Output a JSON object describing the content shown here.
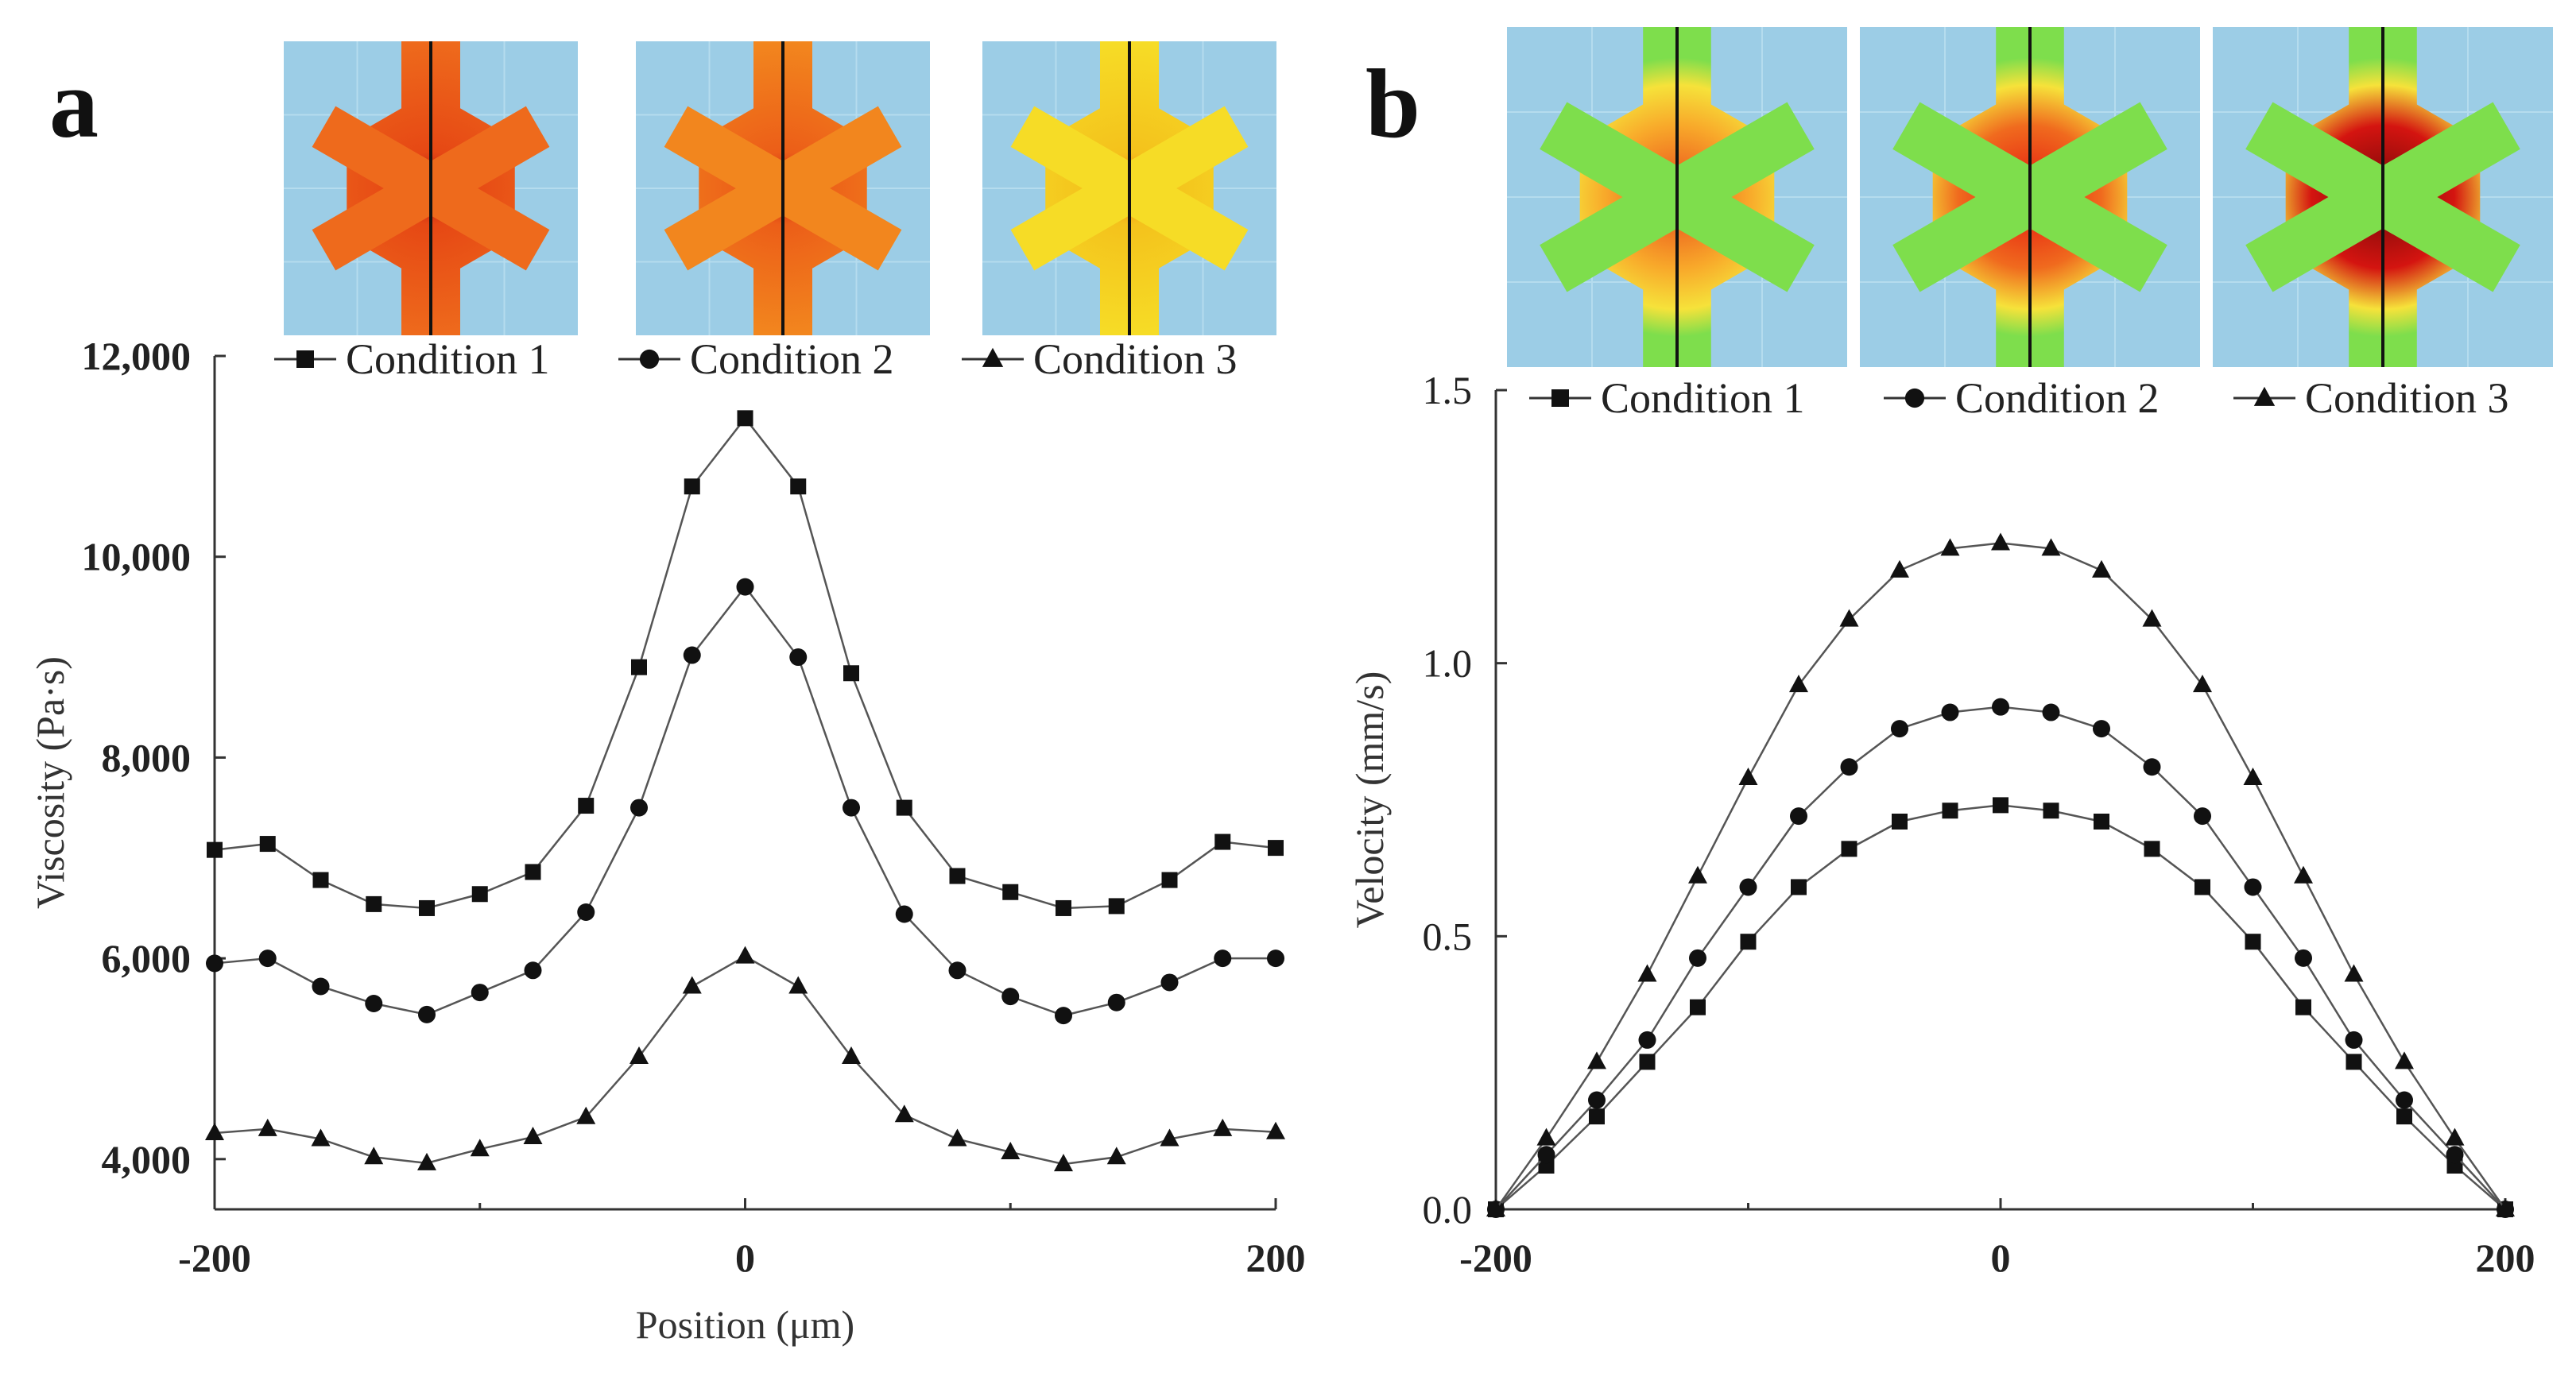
{
  "panels": [
    {
      "letter": "a",
      "thumbnails": [
        {
          "label": "Condition 1",
          "colormap": "viscosity",
          "center": "#b01010",
          "mid": "#e64814",
          "edge": "#ee6a1c",
          "bg": "#9ccde6"
        },
        {
          "label": "Condition 2",
          "colormap": "viscosity",
          "center": "#c81e10",
          "mid": "#ec5e18",
          "edge": "#f2861e",
          "bg": "#9ccde6"
        },
        {
          "label": "Condition 3",
          "colormap": "viscosity",
          "center": "#f07e16",
          "mid": "#f4c21c",
          "edge": "#f6dc26",
          "bg": "#9ccde6"
        }
      ]
    },
    {
      "letter": "b",
      "thumbnails": [
        {
          "label": "Condition 1",
          "colormap": "velocity",
          "center": "#e8461a",
          "mid": "#f8a82a",
          "edge": "#7ede4c",
          "bg": "#9ccde6"
        },
        {
          "label": "Condition 2",
          "colormap": "velocity",
          "center": "#e4140e",
          "mid": "#f06a1e",
          "edge": "#7ede4c",
          "bg": "#9ccde6"
        },
        {
          "label": "Condition 3",
          "colormap": "velocity",
          "center": "#6e0808",
          "mid": "#d41410",
          "edge": "#7ede4c",
          "bg": "#9ccde6"
        }
      ]
    }
  ],
  "chart_data": [
    {
      "type": "line",
      "panel": "a",
      "title": "",
      "xlabel": "Position (μm)",
      "ylabel": "Viscosity (Pa·s)",
      "xlim": [
        -200,
        200
      ],
      "ylim": [
        3500,
        12000
      ],
      "xticks": [
        -200,
        0,
        200
      ],
      "xtick_labels": [
        "-200",
        "0",
        "200"
      ],
      "yticks": [
        4000,
        6000,
        8000,
        10000,
        12000
      ],
      "ytick_labels": [
        "4,000",
        "6,000",
        "8,000",
        "10,000",
        "12,000"
      ],
      "legend_position": "top",
      "x": [
        -200,
        -180,
        -160,
        -140,
        -120,
        -100,
        -80,
        -60,
        -40,
        -20,
        0,
        20,
        40,
        60,
        80,
        100,
        120,
        140,
        160,
        180,
        200
      ],
      "series": [
        {
          "name": "Condition 1",
          "marker": "square",
          "values": [
            7080,
            7140,
            6780,
            6540,
            6500,
            6640,
            6860,
            7520,
            8900,
            10700,
            11380,
            10700,
            8840,
            7500,
            6820,
            6660,
            6500,
            6520,
            6780,
            7160,
            7100
          ]
        },
        {
          "name": "Condition 2",
          "marker": "circle",
          "values": [
            5950,
            6000,
            5720,
            5550,
            5440,
            5660,
            5880,
            6460,
            7500,
            9020,
            9700,
            9000,
            7500,
            6440,
            5880,
            5620,
            5430,
            5560,
            5760,
            6000,
            6000
          ]
        },
        {
          "name": "Condition 3",
          "marker": "triangle",
          "values": [
            4260,
            4300,
            4200,
            4020,
            3960,
            4100,
            4220,
            4420,
            5020,
            5720,
            6020,
            5720,
            5020,
            4440,
            4200,
            4070,
            3950,
            4020,
            4200,
            4300,
            4270
          ]
        }
      ]
    },
    {
      "type": "line",
      "panel": "b",
      "title": "",
      "xlabel": "",
      "ylabel": "Velocity (mm/s)",
      "xlim": [
        -200,
        200
      ],
      "ylim": [
        0,
        1.5
      ],
      "xticks": [
        -200,
        0,
        200
      ],
      "xtick_labels": [
        "-200",
        "0",
        "200"
      ],
      "yticks": [
        0,
        0.5,
        1.0,
        1.5
      ],
      "ytick_labels": [
        "0.0",
        "0.5",
        "1.0",
        "1.5"
      ],
      "legend_position": "top",
      "x": [
        -200,
        -180,
        -160,
        -140,
        -120,
        -100,
        -80,
        -60,
        -40,
        -20,
        0,
        20,
        40,
        60,
        80,
        100,
        120,
        140,
        160,
        180,
        200
      ],
      "series": [
        {
          "name": "Condition 1",
          "marker": "square",
          "values": [
            0.0,
            0.08,
            0.17,
            0.27,
            0.37,
            0.49,
            0.59,
            0.66,
            0.71,
            0.73,
            0.74,
            0.73,
            0.71,
            0.66,
            0.59,
            0.49,
            0.37,
            0.27,
            0.17,
            0.08,
            0.0
          ]
        },
        {
          "name": "Condition 2",
          "marker": "circle",
          "values": [
            0.0,
            0.1,
            0.2,
            0.31,
            0.46,
            0.59,
            0.72,
            0.81,
            0.88,
            0.91,
            0.92,
            0.91,
            0.88,
            0.81,
            0.72,
            0.59,
            0.46,
            0.31,
            0.2,
            0.1,
            0.0
          ]
        },
        {
          "name": "Condition 3",
          "marker": "triangle",
          "values": [
            0.0,
            0.13,
            0.27,
            0.43,
            0.61,
            0.79,
            0.96,
            1.08,
            1.17,
            1.21,
            1.22,
            1.21,
            1.17,
            1.08,
            0.96,
            0.79,
            0.61,
            0.43,
            0.27,
            0.13,
            0.0
          ]
        }
      ]
    }
  ]
}
